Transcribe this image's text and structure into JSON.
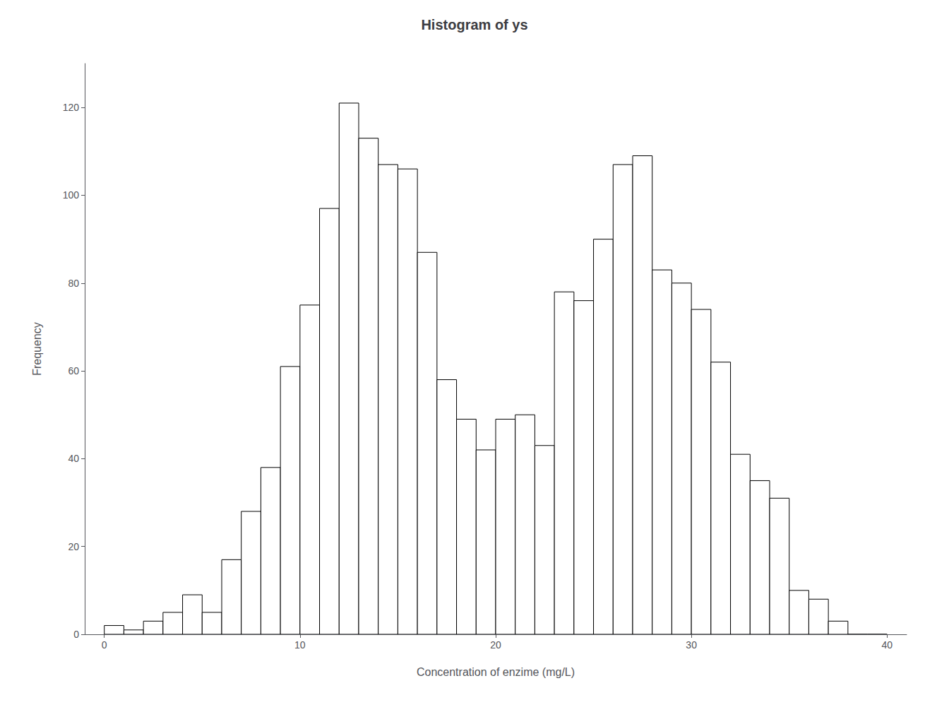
{
  "chart_data": {
    "type": "histogram",
    "title": "Histogram of ys",
    "xlabel": "Concentration of enzime (mg/L)",
    "ylabel": "Frequency",
    "bins": [
      0,
      1,
      2,
      3,
      4,
      5,
      6,
      7,
      8,
      9,
      10,
      11,
      12,
      13,
      14,
      15,
      16,
      17,
      18,
      19,
      20,
      21,
      22,
      23,
      24,
      25,
      26,
      27,
      28,
      29,
      30,
      31,
      32,
      33,
      34,
      35,
      36,
      37,
      38,
      39,
      40
    ],
    "counts": [
      2,
      1,
      3,
      5,
      9,
      5,
      17,
      28,
      38,
      61,
      75,
      97,
      121,
      113,
      107,
      106,
      87,
      58,
      49,
      42,
      49,
      50,
      43,
      78,
      76,
      90,
      107,
      109,
      83,
      80,
      74,
      62,
      41,
      35,
      31,
      10,
      8,
      3,
      0,
      0
    ],
    "color": "white",
    "xlim": [
      -1,
      41
    ],
    "ylim": [
      0,
      130
    ],
    "xticks": [
      0,
      10,
      20,
      30,
      40
    ],
    "yticks": [
      0,
      20,
      40,
      60,
      80,
      100,
      120
    ],
    "grid": false
  }
}
